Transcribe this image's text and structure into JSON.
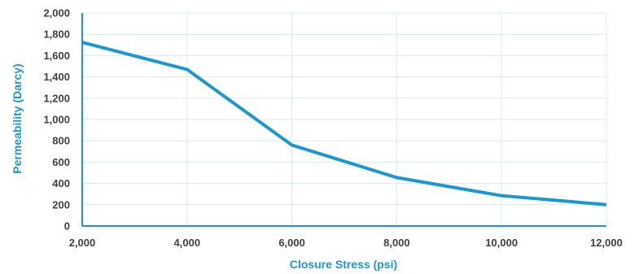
{
  "chart_data": {
    "type": "line",
    "title": "",
    "xlabel": "Closure Stress (psi)",
    "ylabel": "Permeability (Darcy)",
    "x": [
      2000,
      4000,
      6000,
      8000,
      10000,
      12000
    ],
    "series": [
      {
        "values": [
          1725,
          1470,
          760,
          455,
          285,
          200
        ]
      }
    ],
    "xlim": [
      2000,
      12000
    ],
    "ylim": [
      0,
      2000
    ],
    "x_ticks": [
      "2,000",
      "4,000",
      "6,000",
      "8,000",
      "10,000",
      "12,000"
    ],
    "y_ticks": [
      "0",
      "200",
      "400",
      "600",
      "800",
      "1,000",
      "1,200",
      "1,400",
      "1,600",
      "1,800",
      "2,000"
    ],
    "grid": true,
    "legend": "none",
    "colors": {
      "line": "#1b98d3",
      "axis": "#1b98d3",
      "grid": "#d6eaf6",
      "label": "#404040",
      "title": "#1b98d3"
    }
  }
}
